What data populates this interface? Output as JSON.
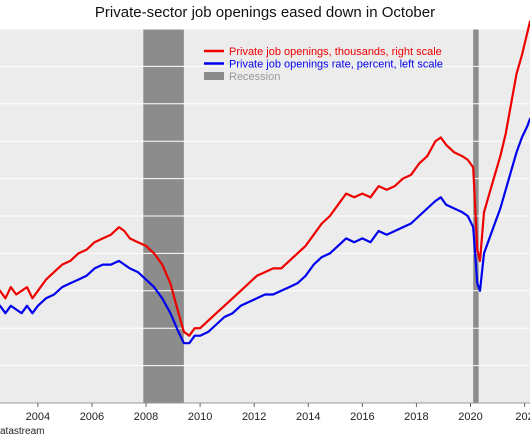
{
  "chart_data": {
    "type": "line",
    "title": "Private-sector job openings eased down in October",
    "source": "atastream",
    "x_tick_labels": [
      "2004",
      "2006",
      "2008",
      "2010",
      "2012",
      "2014",
      "2016",
      "2018",
      "2020",
      "202"
    ],
    "xlim": [
      2002.6,
      2022.2
    ],
    "x_unit": "year",
    "grid": "horizontal",
    "legend_placement": "top-center",
    "recessions": [
      {
        "label": "Recession",
        "start": 2007.9,
        "end": 2009.4
      },
      {
        "start": 2020.1,
        "end": 2020.3
      }
    ],
    "series": [
      {
        "name": "Private job openings, thousands, right scale",
        "color": "#ee0000",
        "x": [
          2002.6,
          2002.8,
          2003.0,
          2003.2,
          2003.4,
          2003.6,
          2003.8,
          2004.0,
          2004.3,
          2004.6,
          2004.9,
          2005.2,
          2005.5,
          2005.8,
          2006.1,
          2006.4,
          2006.7,
          2007.0,
          2007.2,
          2007.4,
          2007.7,
          2008.0,
          2008.3,
          2008.6,
          2008.9,
          2009.2,
          2009.4,
          2009.6,
          2009.8,
          2010.0,
          2010.3,
          2010.6,
          2010.9,
          2011.2,
          2011.5,
          2011.8,
          2012.1,
          2012.4,
          2012.7,
          2013.0,
          2013.3,
          2013.6,
          2013.9,
          2014.2,
          2014.5,
          2014.8,
          2015.1,
          2015.4,
          2015.7,
          2016.0,
          2016.3,
          2016.6,
          2016.9,
          2017.2,
          2017.5,
          2017.8,
          2018.1,
          2018.4,
          2018.7,
          2018.9,
          2019.1,
          2019.4,
          2019.7,
          2019.9,
          2020.1,
          2020.25,
          2020.35,
          2020.5,
          2020.7,
          2020.9,
          2021.1,
          2021.3,
          2021.5,
          2021.7,
          2021.9,
          2022.1,
          2022.2
        ],
        "values": [
          0.3,
          0.28,
          0.31,
          0.29,
          0.3,
          0.31,
          0.28,
          0.3,
          0.33,
          0.35,
          0.37,
          0.38,
          0.4,
          0.41,
          0.43,
          0.44,
          0.45,
          0.47,
          0.46,
          0.44,
          0.43,
          0.42,
          0.4,
          0.37,
          0.32,
          0.24,
          0.19,
          0.18,
          0.2,
          0.2,
          0.22,
          0.24,
          0.26,
          0.28,
          0.3,
          0.32,
          0.34,
          0.35,
          0.36,
          0.36,
          0.38,
          0.4,
          0.42,
          0.45,
          0.48,
          0.5,
          0.53,
          0.56,
          0.55,
          0.56,
          0.55,
          0.58,
          0.57,
          0.58,
          0.6,
          0.61,
          0.64,
          0.66,
          0.7,
          0.71,
          0.69,
          0.67,
          0.66,
          0.65,
          0.63,
          0.41,
          0.38,
          0.51,
          0.56,
          0.61,
          0.66,
          0.72,
          0.8,
          0.88,
          0.93,
          0.99,
          1.02
        ]
      },
      {
        "name": "Private job openings rate, percent, left scale",
        "color": "#0000ee",
        "x": [
          2002.6,
          2002.8,
          2003.0,
          2003.2,
          2003.4,
          2003.6,
          2003.8,
          2004.0,
          2004.3,
          2004.6,
          2004.9,
          2005.2,
          2005.5,
          2005.8,
          2006.1,
          2006.4,
          2006.7,
          2007.0,
          2007.2,
          2007.4,
          2007.7,
          2008.0,
          2008.3,
          2008.6,
          2008.9,
          2009.2,
          2009.4,
          2009.6,
          2009.8,
          2010.0,
          2010.3,
          2010.6,
          2010.9,
          2011.2,
          2011.5,
          2011.8,
          2012.1,
          2012.4,
          2012.7,
          2013.0,
          2013.3,
          2013.6,
          2013.9,
          2014.2,
          2014.5,
          2014.8,
          2015.1,
          2015.4,
          2015.7,
          2016.0,
          2016.3,
          2016.6,
          2016.9,
          2017.2,
          2017.5,
          2017.8,
          2018.1,
          2018.4,
          2018.7,
          2018.9,
          2019.1,
          2019.4,
          2019.7,
          2019.9,
          2020.1,
          2020.25,
          2020.35,
          2020.5,
          2020.7,
          2020.9,
          2021.1,
          2021.3,
          2021.5,
          2021.7,
          2021.9,
          2022.1,
          2022.2
        ],
        "values": [
          0.26,
          0.24,
          0.26,
          0.25,
          0.24,
          0.26,
          0.24,
          0.26,
          0.28,
          0.29,
          0.31,
          0.32,
          0.33,
          0.34,
          0.36,
          0.37,
          0.37,
          0.38,
          0.37,
          0.36,
          0.35,
          0.33,
          0.31,
          0.28,
          0.24,
          0.19,
          0.16,
          0.16,
          0.18,
          0.18,
          0.19,
          0.21,
          0.23,
          0.24,
          0.26,
          0.27,
          0.28,
          0.29,
          0.29,
          0.3,
          0.31,
          0.32,
          0.34,
          0.37,
          0.39,
          0.4,
          0.42,
          0.44,
          0.43,
          0.44,
          0.43,
          0.46,
          0.45,
          0.46,
          0.47,
          0.48,
          0.5,
          0.52,
          0.54,
          0.55,
          0.53,
          0.52,
          0.51,
          0.5,
          0.47,
          0.32,
          0.3,
          0.4,
          0.44,
          0.48,
          0.52,
          0.57,
          0.62,
          0.67,
          0.71,
          0.74,
          0.76
        ]
      }
    ],
    "legend_recession_label": "Recession",
    "colors": {
      "background": "#ececec",
      "grid": "#ffffff",
      "recession": "#8c8c8c"
    }
  }
}
